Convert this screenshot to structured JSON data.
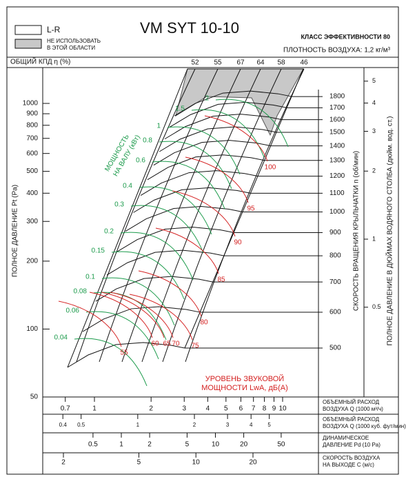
{
  "legend": {
    "items": [
      {
        "label": [
          "L-R"
        ]
      },
      {
        "label": [
          "НЕ ИСПОЛЬЗОВАТЬ",
          "В ЭТОЙ ОБЛАСТИ"
        ]
      }
    ]
  },
  "header": {
    "title": "VM SYT 10-10",
    "efficiency_class": "КЛАСС ЭФФЕКТИВНОСТИ 80",
    "air_density": "ПЛОТНОСТЬ ВОЗДУХА: 1,2 кг/м³"
  },
  "efficiency": {
    "label": "ОБЩИЙ КПД η (%)",
    "values": [
      52,
      55,
      67,
      64,
      58,
      46
    ]
  },
  "pressure_axis": {
    "label": "ПОЛНОЕ ДАВЛЕНИЕ Pt (Pa)",
    "ticks": [
      1000,
      900,
      800,
      700,
      600,
      500,
      400,
      300,
      200,
      100,
      50
    ]
  },
  "speed_axis": {
    "label": "СКОРОСТЬ ВРАЩЕНИЯ КРЫЛЬЧАТКИ n (об/мин)",
    "ticks": [
      1800,
      1700,
      1600,
      1500,
      1400,
      1300,
      1200,
      1100,
      1000,
      900,
      800,
      700,
      600,
      500
    ]
  },
  "inch_axis": {
    "label": "ПОЛНОЕ ДАВЛЕНИЕ В ДЮЙМАХ ВОДЯНОГО СТОЛБА (дюйм. вод. ст.)",
    "ticks": [
      5,
      4,
      3,
      2,
      1,
      0.5
    ]
  },
  "shaft_power": {
    "label": [
      "МОЩНОСТЬ",
      "НА ВАЛУ (кВт)"
    ],
    "values": [
      2,
      1.5,
      1,
      0.8,
      0.6,
      0.4,
      0.3,
      0.2,
      0.15,
      0.1,
      0.08,
      0.06,
      0.04
    ]
  },
  "sound_power": {
    "label": [
      "УРОВЕНЬ ЗВУКОВОЙ",
      "МОЩНОСТИ LwA, дБ(А)"
    ],
    "values": [
      100,
      95,
      90,
      85,
      80,
      75,
      70,
      65,
      60,
      55
    ]
  },
  "scales": [
    {
      "label": [
        "ОБЪЕМНЫЙ РАСХОД",
        "ВОЗДУХА Q (1000 м³/ч)"
      ],
      "ticks": [
        0.7,
        1,
        2,
        3,
        4,
        5,
        6,
        7,
        8,
        9,
        10
      ]
    },
    {
      "label": [
        "ОБЪЕМНЫЙ РАСХОД",
        "ВОЗДУХА Q (1000 куб. фут/мин)"
      ],
      "ticks": [
        0.4,
        0.5,
        1,
        2,
        3,
        4,
        5
      ]
    },
    {
      "label": [
        "ДИНАМИЧЕСКОЕ",
        "ДАВЛЕНИЕ Pd (10 Pa)"
      ],
      "ticks": [
        0.5,
        1,
        2,
        5,
        10,
        20,
        50
      ]
    },
    {
      "label": [
        "СКОРОСТЬ ВОЗДУХА",
        "НА ВЫХОДЕ C (м/с)"
      ],
      "ticks": [
        2,
        5,
        10,
        20
      ]
    }
  ]
}
